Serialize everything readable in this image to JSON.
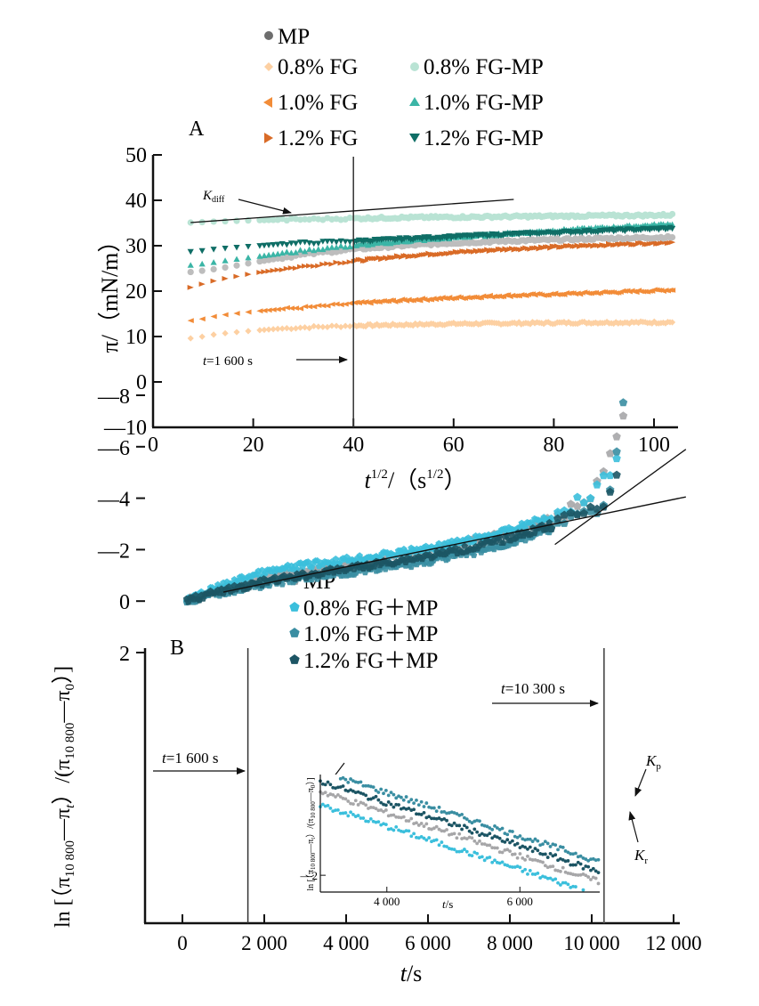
{
  "chart_data": [
    {
      "panel": "A",
      "type": "scatter",
      "title": "",
      "xlabel": "t^1/2/ (s^1/2)",
      "xlabel_parts": {
        "base": "t",
        "sup": "1/2",
        "mid": "/（s",
        "sup2": "1/2",
        "end": "）"
      },
      "ylabel": "π/（mN/m）",
      "xlim": [
        0,
        105
      ],
      "ylim": [
        -10,
        50
      ],
      "xticks": [
        0,
        20,
        40,
        60,
        80,
        100
      ],
      "yticks": [
        50,
        40,
        30,
        20,
        10,
        0,
        -10
      ],
      "ytick_labels": [
        "50",
        "40",
        "30",
        "20",
        "10",
        "0",
        "—10"
      ],
      "xtick_labels": [
        "0",
        "20",
        "40",
        "60",
        "80",
        "100"
      ],
      "grid": false,
      "legend_position": "top",
      "vline": {
        "x": 40,
        "label": "t=1 600 s",
        "label_t": "t",
        "label_rest": "=1 600 s"
      },
      "annotations": [
        {
          "text": "K",
          "sub": "diff",
          "type": "tangent-line"
        }
      ],
      "kdiff_line": {
        "x": [
          7.5,
          72
        ],
        "y": [
          35.1,
          40.2
        ]
      },
      "series": [
        {
          "name": "MP",
          "marker": "circle",
          "color": "#bdbdbd",
          "legend_color": "#6d6d6d",
          "x": [
            7.5,
            10,
            12,
            15,
            20,
            25,
            30,
            35,
            40,
            50,
            60,
            70,
            80,
            90,
            100,
            104
          ],
          "y": [
            24.2,
            24.5,
            24.8,
            25.3,
            26.3,
            27.2,
            28.0,
            28.6,
            29.2,
            30.0,
            30.6,
            31.0,
            31.3,
            31.6,
            31.8,
            31.9
          ]
        },
        {
          "name": "0.8% FG",
          "marker": "diamond",
          "color": "#fdd0a2",
          "x": [
            7.5,
            10,
            12,
            15,
            20,
            25,
            30,
            35,
            40,
            50,
            60,
            70,
            80,
            90,
            100,
            104
          ],
          "y": [
            9.6,
            10.0,
            10.4,
            10.8,
            11.3,
            11.7,
            12.0,
            12.2,
            12.4,
            12.6,
            12.8,
            12.9,
            13.0,
            13.1,
            13.1,
            13.2
          ]
        },
        {
          "name": "1.0% FG",
          "marker": "triangle-left",
          "color": "#f28c38",
          "x": [
            7.5,
            10,
            12,
            15,
            20,
            25,
            30,
            35,
            40,
            50,
            60,
            70,
            80,
            90,
            100,
            104
          ],
          "y": [
            13.5,
            13.9,
            14.4,
            14.9,
            15.5,
            16.0,
            16.4,
            16.8,
            17.3,
            18.0,
            18.5,
            19.0,
            19.3,
            19.7,
            20.1,
            20.3
          ]
        },
        {
          "name": "1.2% FG",
          "marker": "triangle-right",
          "color": "#d96b27",
          "x": [
            7.5,
            10,
            12,
            15,
            20,
            25,
            30,
            35,
            40,
            50,
            60,
            70,
            80,
            90,
            100,
            104
          ],
          "y": [
            20.8,
            21.6,
            22.2,
            22.9,
            23.9,
            24.7,
            25.4,
            26.1,
            26.6,
            27.7,
            28.5,
            29.2,
            29.7,
            30.2,
            30.6,
            30.8
          ]
        },
        {
          "name": "0.8% FG-MP",
          "marker": "circle",
          "color": "#b9e3d4",
          "x": [
            7.5,
            10,
            12,
            15,
            20,
            25,
            30,
            35,
            40,
            50,
            60,
            70,
            80,
            90,
            100,
            104
          ],
          "y": [
            35.1,
            35.2,
            35.3,
            35.4,
            35.6,
            35.7,
            35.8,
            35.9,
            36.0,
            36.2,
            36.3,
            36.4,
            36.5,
            36.6,
            36.7,
            36.8
          ]
        },
        {
          "name": "1.0% FG-MP",
          "marker": "triangle-up",
          "color": "#3bb5a6",
          "x": [
            7.5,
            10,
            12,
            15,
            20,
            25,
            30,
            35,
            40,
            50,
            60,
            70,
            80,
            90,
            100,
            104
          ],
          "y": [
            25.7,
            26.0,
            26.3,
            26.8,
            27.5,
            28.2,
            28.9,
            29.5,
            30.0,
            31.0,
            31.8,
            32.6,
            33.3,
            33.9,
            34.5,
            34.8
          ]
        },
        {
          "name": "1.2% FG-MP",
          "marker": "triangle-down",
          "color": "#0f6e66",
          "x": [
            7.5,
            10,
            12,
            15,
            20,
            25,
            30,
            35,
            40,
            50,
            60,
            70,
            80,
            90,
            100,
            104
          ],
          "y": [
            28.7,
            28.9,
            29.2,
            29.5,
            29.9,
            30.3,
            30.6,
            30.8,
            31.0,
            31.5,
            32.0,
            32.5,
            32.9,
            33.3,
            33.7,
            33.9
          ]
        }
      ]
    },
    {
      "panel": "B",
      "type": "scatter",
      "title": "",
      "xlabel": "t/s",
      "ylabel": "ln [ (π10 800 − πt) /(π10 800 − π0) ]",
      "xlim": [
        -1000,
        12000
      ],
      "ylim": [
        -8.5,
        2
      ],
      "xticks": [
        0,
        2000,
        4000,
        6000,
        8000,
        10000,
        12000
      ],
      "xtick_labels": [
        "0",
        "2 000",
        "4 000",
        "6 000",
        "8 000",
        "10 000",
        "12 000"
      ],
      "yticks": [
        2,
        0,
        -2,
        -4,
        -6,
        -8
      ],
      "ytick_labels": [
        "2",
        "0",
        "—2",
        "—4",
        "—6",
        "—8"
      ],
      "grid": false,
      "legend_position": "top",
      "vlines": [
        {
          "x": 1600,
          "label_t": "t",
          "label_rest": "=1 600 s"
        },
        {
          "x": 10300,
          "label_t": "t",
          "label_rest": "=10 300 s"
        }
      ],
      "kp_line": {
        "x": [
          1000,
          12300
        ],
        "y": [
          -0.35,
          -4.05
        ]
      },
      "kr_line": {
        "x": [
          9100,
          12300
        ],
        "y": [
          -2.2,
          -5.9
        ]
      },
      "annotations": [
        {
          "text": "K",
          "sub": "p"
        },
        {
          "text": "K",
          "sub": "r"
        }
      ],
      "zoom_box": {
        "x": [
          3000,
          7200
        ],
        "y": [
          0,
          -2.3
        ]
      },
      "series": [
        {
          "name": "MP",
          "marker": "pentagon",
          "color": "#a6a6a8",
          "x": [
            100,
            500,
            1000,
            1600,
            2000,
            3000,
            4000,
            5000,
            6000,
            7000,
            8000,
            9000,
            9500,
            10000,
            10300,
            10500,
            10700,
            10900
          ],
          "y": [
            0,
            -0.2,
            -0.45,
            -0.7,
            -0.85,
            -1.15,
            -1.4,
            -1.65,
            -1.95,
            -2.3,
            -2.7,
            -3.2,
            -3.6,
            -4.2,
            -5.0,
            -6.0,
            -6.8,
            -7.5
          ]
        },
        {
          "name": "0.8% FG+MP",
          "marker": "pentagon",
          "color": "#3bbfdc",
          "x": [
            100,
            500,
            1000,
            1600,
            2000,
            3000,
            4000,
            5000,
            6000,
            7000,
            8000,
            9000,
            9500,
            10000,
            10300,
            10500,
            10700
          ],
          "y": [
            0,
            -0.3,
            -0.6,
            -0.95,
            -1.1,
            -1.4,
            -1.6,
            -1.8,
            -2.05,
            -2.35,
            -2.75,
            -3.3,
            -3.7,
            -4.2,
            -4.7,
            -5.2,
            -5.7
          ]
        },
        {
          "name": "1.0% FG+MP",
          "marker": "pentagon",
          "color": "#3a8ea2",
          "x": [
            100,
            500,
            1000,
            1600,
            2000,
            3000,
            4000,
            5000,
            6000,
            7000,
            8000,
            9000,
            9500,
            10000,
            10300,
            10500,
            10800
          ],
          "y": [
            0,
            -0.15,
            -0.35,
            -0.55,
            -0.65,
            -0.9,
            -1.1,
            -1.3,
            -1.55,
            -1.85,
            -2.25,
            -2.8,
            -3.1,
            -3.5,
            -3.8,
            -4.2,
            -7.9
          ]
        },
        {
          "name": "1.2% FG+MP",
          "marker": "pentagon",
          "color": "#1c5564",
          "x": [
            100,
            500,
            1000,
            1600,
            2000,
            3000,
            4000,
            5000,
            6000,
            7000,
            8000,
            9000,
            9500,
            10000,
            10300,
            10500,
            10700
          ],
          "y": [
            0,
            -0.2,
            -0.4,
            -0.6,
            -0.75,
            -1.0,
            -1.25,
            -1.5,
            -1.75,
            -2.05,
            -2.45,
            -2.95,
            -3.25,
            -3.6,
            -3.9,
            -4.6,
            -5.2
          ]
        }
      ],
      "inset": {
        "xlabel": "t/s",
        "ylabel": "ln [ (π10 800 − πt) /(π10 800 − π0) ]",
        "xlim": [
          3000,
          7200
        ],
        "ylim": [
          -2.25,
          -0.5
        ],
        "xticks": [
          4000,
          6000
        ],
        "xtick_labels": [
          "4 000",
          "6 000"
        ],
        "yticks": [
          -2
        ],
        "ytick_labels": [
          "—2"
        ]
      }
    }
  ],
  "legend_a": {
    "left": [
      "MP",
      "0.8% FG",
      "1.0% FG",
      "1.2% FG"
    ],
    "right": [
      "0.8% FG-MP",
      "1.0% FG-MP",
      "1.2% FG-MP"
    ]
  },
  "legend_b": [
    "MP",
    "0.8% FG＋MP",
    "1.0% FG＋MP",
    "1.2% FG＋MP"
  ],
  "labels": {
    "panel_a": "A",
    "panel_b": "B",
    "a_ylabel": "π/（mN/m）",
    "a_xlabel_t": "t",
    "a_xlabel_sup": "1/2",
    "a_xlabel_mid": "/（s",
    "a_xlabel_sup2": "1/2",
    "a_xlabel_end": "）",
    "b_xlabel_t": "t",
    "b_xlabel_rest": "/s",
    "b_ylabel_ln": "ln [（π",
    "b_ylabel_sub1": "10 800",
    "b_ylabel_mid": "—π",
    "b_ylabel_sub_t": "t",
    "b_ylabel_mid2": "）/(π",
    "b_ylabel_sub2": "10 800",
    "b_ylabel_mid3": "—π",
    "b_ylabel_sub0": "0",
    "b_ylabel_end": "）]",
    "kdiff_k": "K",
    "kdiff_sub": "diff",
    "kp_k": "K",
    "kp_sub": "p",
    "kr_k": "K",
    "kr_sub": "r",
    "vline_a_t": "t",
    "vline_a_rest": "=1 600 s",
    "vline_b1_t": "t",
    "vline_b1_rest": "=1 600 s",
    "vline_b2_t": "t",
    "vline_b2_rest": "=10 300 s",
    "inset_x_t": "t",
    "inset_x_rest": "/s"
  }
}
